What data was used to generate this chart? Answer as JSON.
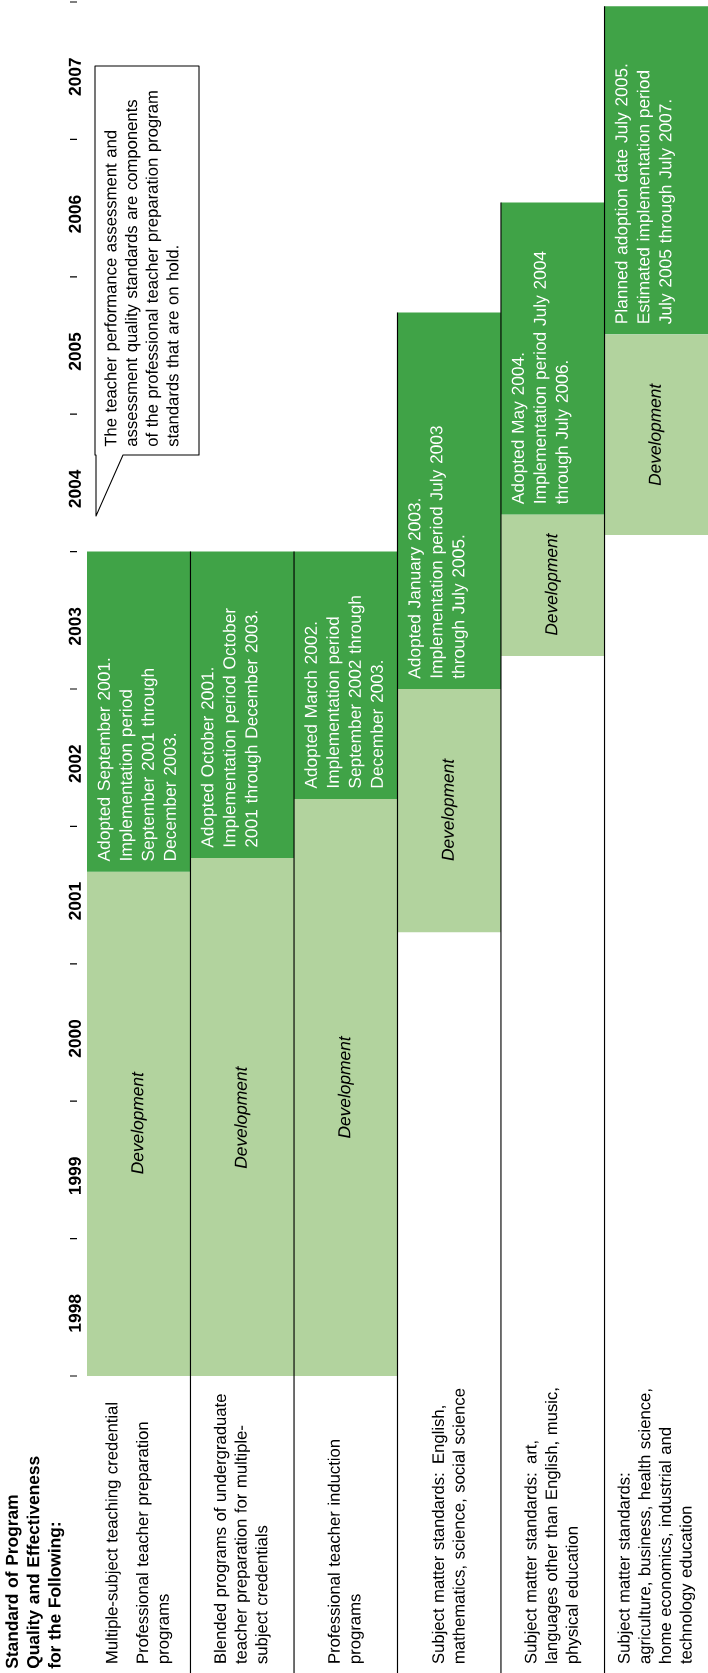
{
  "chart_data": {
    "type": "bar",
    "ylabel": "Standard of Program Quality and Effectiveness for the Following:",
    "categories": [
      "Multiple-subject teaching credential",
      "Blended programs of undergraduate teacher preparation for multiple-subject credentials",
      "Professional teacher induction programs",
      "Subject matter standards: English, mathematics, science, social science",
      "Subject matter standards: art, languages other than English, music, physical education",
      "Subject matter standards: agriculture, business, health science, home economics, industrial and technology education"
    ],
    "ylim": [
      1998,
      2008
    ],
    "yticks": [
      {
        "value": 1998,
        "label": null
      },
      {
        "value": 1998.5,
        "label": "1998"
      },
      {
        "value": 1999,
        "label": null
      },
      {
        "value": 1999.5,
        "label": "1999"
      },
      {
        "value": 2000,
        "label": null
      },
      {
        "value": 2000.5,
        "label": "2000"
      },
      {
        "value": 2001,
        "label": null
      },
      {
        "value": 2001.5,
        "label": "2001"
      },
      {
        "value": 2002,
        "label": null
      },
      {
        "value": 2002.5,
        "label": "2002"
      },
      {
        "value": 2003,
        "label": null
      },
      {
        "value": 2003.5,
        "label": "2003"
      },
      {
        "value": 2004,
        "label": null
      },
      {
        "value": 2004.5,
        "label": "2004"
      },
      {
        "value": 2005,
        "label": null
      },
      {
        "value": 2005.5,
        "label": "2005"
      },
      {
        "value": 2006,
        "label": null
      },
      {
        "value": 2006.5,
        "label": "2006"
      },
      {
        "value": 2007,
        "label": null
      },
      {
        "value": 2007.5,
        "label": "2007"
      },
      {
        "value": 2008,
        "label": null
      }
    ],
    "series": [
      {
        "color": "#b2d39e",
        "base": [
          1998,
          1998,
          1998,
          2001.23,
          2003.24,
          2004.12
        ],
        "values": [
          3.67,
          3.77,
          4.2,
          1.77,
          1.03,
          1.46
        ],
        "value_labels": [
          "Development",
          "Development",
          "Development",
          "Development",
          "Development",
          "Development"
        ]
      },
      {
        "color": "#40a347",
        "base": [
          2001.67,
          2001.77,
          2002.2,
          2003.0,
          2004.27,
          2005.58
        ],
        "values": [
          2.33,
          2.23,
          1.8,
          2.74,
          2.27,
          2.39
        ],
        "value_labels": [
          "Adopted September 2001. Implementation period September 2001 through December 2003.",
          "Adopted October 2001. Implementation period October 2001 through December 2003.",
          "Adopted March 2002. Implementation period September 2002 through December 2003.",
          "Adopted January 2003. Implementation period July 2003 through July 2005.",
          "Adopted May 2004. Implementation period July 2004 through July 2006.",
          "Planned adoption date July 2005. Estimated implementation period July 2005 through July 2007."
        ]
      }
    ],
    "annotations": [
      "The teacher performance assessment and assessment quality standards are components of the professional teacher preparation program standards that are on hold.",
      "Professional teacher preparation programs"
    ]
  }
}
